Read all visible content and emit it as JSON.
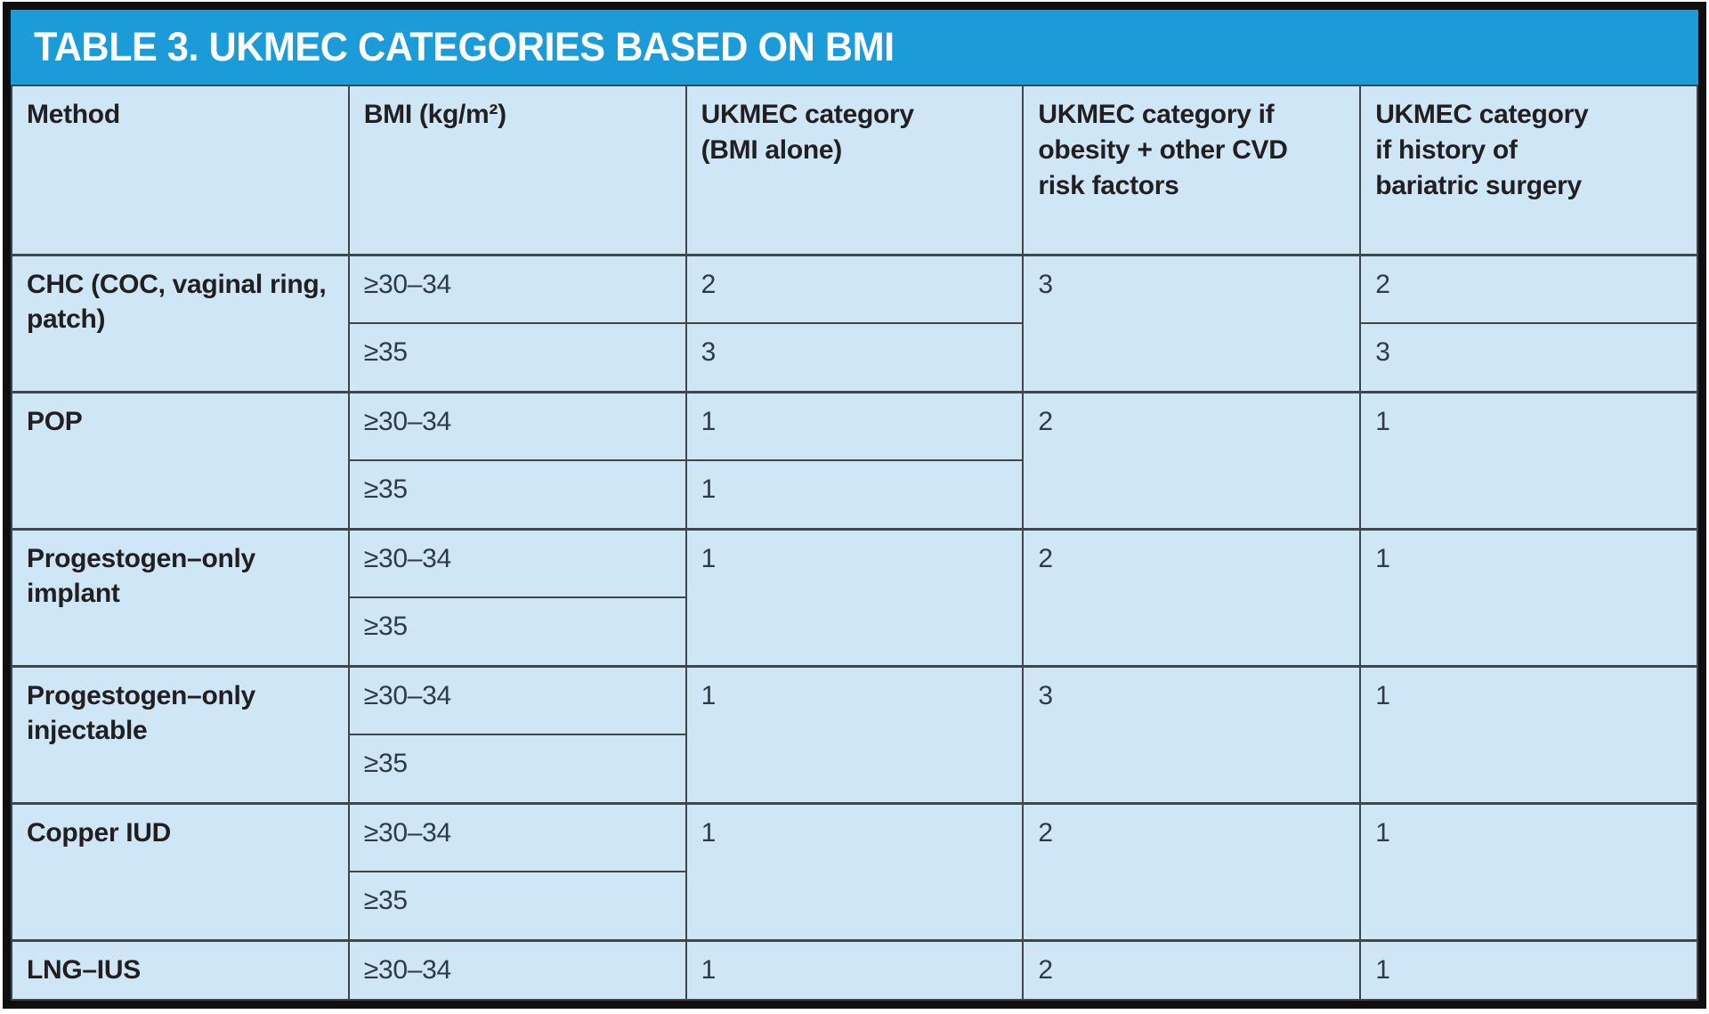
{
  "title": "TABLE 3. UKMEC CATEGORIES BASED ON BMI",
  "colors": {
    "title_bar": "#1b9cd9",
    "cell_bg": "#cfe6f7",
    "grid_line": "#42464b",
    "outer_border": "#0f0f10",
    "text": "#221f20",
    "value_text": "#2e3b46",
    "title_text": "#ffffff"
  },
  "columns": {
    "method": "Method",
    "bmi": "BMI (kg/m²)",
    "bmi_alone": "UKMEC category\n(BMI alone)",
    "cvd": "UKMEC category if\nobesity + other CVD\nrisk factors",
    "bariatric": "UKMEC category\nif history of\nbariatric surgery"
  },
  "groups": [
    {
      "method": "CHC (COC, vaginal ring,\npatch)",
      "cvd": "3",
      "rows": [
        {
          "bmi": "≥30–34",
          "bmi_alone": "2",
          "bariatric": "2"
        },
        {
          "bmi": "≥35",
          "bmi_alone": "3",
          "bariatric": "3"
        }
      ]
    },
    {
      "method": "POP",
      "cvd": "2",
      "bariatric": "1",
      "rows": [
        {
          "bmi": "≥30–34",
          "bmi_alone": "1"
        },
        {
          "bmi": "≥35",
          "bmi_alone": "1"
        }
      ]
    },
    {
      "method": "Progestogen–only\nimplant",
      "bmi_alone": "1",
      "cvd": "2",
      "bariatric": "1",
      "rows": [
        {
          "bmi": "≥30–34"
        },
        {
          "bmi": "≥35"
        }
      ]
    },
    {
      "method": "Progestogen–only\ninjectable",
      "bmi_alone": "1",
      "cvd": "3",
      "bariatric": "1",
      "rows": [
        {
          "bmi": "≥30–34"
        },
        {
          "bmi": "≥35"
        }
      ]
    },
    {
      "method": "Copper IUD",
      "bmi_alone": "1",
      "cvd": "2",
      "bariatric": "1",
      "rows": [
        {
          "bmi": "≥30–34"
        },
        {
          "bmi": "≥35"
        }
      ]
    },
    {
      "method": "LNG–IUS",
      "bmi_alone": "1",
      "cvd": "2",
      "bariatric": "1",
      "rows": [
        {
          "bmi": "≥30–34"
        }
      ]
    }
  ]
}
